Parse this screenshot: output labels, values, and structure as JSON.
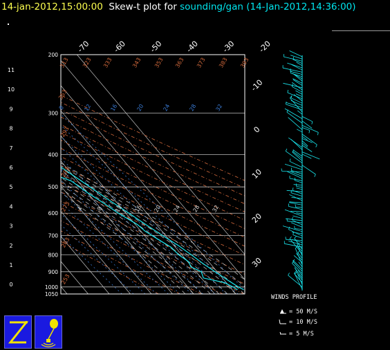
{
  "header": {
    "obs_time": "14-jan-2012,15:00:00",
    "plot_label": "Skew-t plot for",
    "dataset": "sounding/gan",
    "dataset_time": "(14-Jan-2012,14:36:00)"
  },
  "colors": {
    "frame": "#ffffff",
    "isobar": "#bdbdbd",
    "isotherm": "#c8c8c8",
    "dry_adiabat": "#d46a3c",
    "moist_adiabat": "#d0d0d0",
    "mixing_ratio": "#3a7bd5",
    "profile": "#19e6ee",
    "title_time": "#fdff4f",
    "title_dataset": "#00e5ee",
    "logo_bg": "#1a1ae0",
    "logo_fg": "#f2e300"
  },
  "chart_data": {
    "type": "line",
    "title": "Skew-t plot for sounding/gan (14-Jan-2012,14:36:00)",
    "pressure_axis_hpa": [
      200,
      300,
      400,
      500,
      600,
      700,
      800,
      900,
      1000,
      1050
    ],
    "height_axis_km": [
      "11",
      "10",
      "9",
      "8",
      "7",
      "6",
      "5",
      "4",
      "3",
      "2",
      "1",
      "0"
    ],
    "isotherm_labels_c_top": [
      "-70",
      "-60",
      "-50",
      "-40",
      "-30",
      "-20"
    ],
    "isotherm_labels_c_right": [
      "-10",
      "0",
      "10",
      "20",
      "30"
    ],
    "dry_adiabat_labels_k": [
      "313",
      "323",
      "333",
      "343",
      "353",
      "363",
      "373",
      "383",
      "393",
      "353",
      "293",
      "283",
      "273",
      "263",
      "253"
    ],
    "mixing_ratio_labels_gkg": [
      "8",
      "12",
      "16",
      "20",
      "24",
      "28",
      "32"
    ],
    "moist_adiabat_labels": [
      "4",
      "8",
      "12",
      "16",
      "20",
      "24",
      "28",
      "32"
    ],
    "temperature_profile": [
      {
        "p": 1020,
        "t": 25.5
      },
      {
        "p": 1000,
        "t": 24.0
      },
      {
        "p": 950,
        "t": 21.5
      },
      {
        "p": 900,
        "t": 19.0
      },
      {
        "p": 850,
        "t": 16.5
      },
      {
        "p": 800,
        "t": 14.5
      },
      {
        "p": 750,
        "t": 12.0
      },
      {
        "p": 700,
        "t": 8.5
      },
      {
        "p": 650,
        "t": 5.0
      },
      {
        "p": 600,
        "t": 1.5
      },
      {
        "p": 550,
        "t": -2.5
      },
      {
        "p": 500,
        "t": -6.5
      },
      {
        "p": 450,
        "t": -11.0
      },
      {
        "p": 400,
        "t": -16.0
      },
      {
        "p": 350,
        "t": -22.5
      },
      {
        "p": 300,
        "t": -30.5
      },
      {
        "p": 250,
        "t": -40.5
      },
      {
        "p": 225,
        "t": -47.5
      },
      {
        "p": 200,
        "t": -54.5
      }
    ],
    "dewpoint_profile": [
      {
        "p": 1020,
        "t": 22.5
      },
      {
        "p": 1000,
        "t": 21.5
      },
      {
        "p": 970,
        "t": 19.0
      },
      {
        "p": 940,
        "t": 11.0
      },
      {
        "p": 900,
        "t": 12.5
      },
      {
        "p": 870,
        "t": 9.5
      },
      {
        "p": 840,
        "t": 10.5
      },
      {
        "p": 800,
        "t": 8.5
      },
      {
        "p": 760,
        "t": 8.0
      },
      {
        "p": 720,
        "t": 5.0
      },
      {
        "p": 680,
        "t": 2.0
      },
      {
        "p": 650,
        "t": 1.0
      },
      {
        "p": 600,
        "t": -3.5
      },
      {
        "p": 560,
        "t": -6.5
      },
      {
        "p": 520,
        "t": -10.0
      },
      {
        "p": 480,
        "t": -13.0
      },
      {
        "p": 455,
        "t": -20.0
      },
      {
        "p": 445,
        "t": -32.0
      },
      {
        "p": 420,
        "t": -40.0
      },
      {
        "p": 395,
        "t": -46.0
      },
      {
        "p": 385,
        "t": -50.0
      },
      {
        "p": 360,
        "t": -49.0
      },
      {
        "p": 335,
        "t": -50.0
      },
      {
        "p": 315,
        "t": -49.0
      },
      {
        "p": 290,
        "t": -52.0
      },
      {
        "p": 265,
        "t": -54.0
      },
      {
        "p": 240,
        "t": -60.0
      },
      {
        "p": 220,
        "t": -62.0
      },
      {
        "p": 205,
        "t": -66.0
      },
      {
        "p": 200,
        "t": -67.0
      }
    ],
    "xlabel": "",
    "ylabel": "",
    "grid": true
  },
  "winds_panel": {
    "title": "WINDS PROFILE",
    "legend": [
      {
        "label": "= 50 M/S"
      },
      {
        "label": "= 10 M/S"
      },
      {
        "label": "= 5 M/S"
      }
    ]
  },
  "logos": [
    {
      "icon": "z-logo-icon"
    },
    {
      "icon": "balloon-sonde-icon"
    }
  ]
}
